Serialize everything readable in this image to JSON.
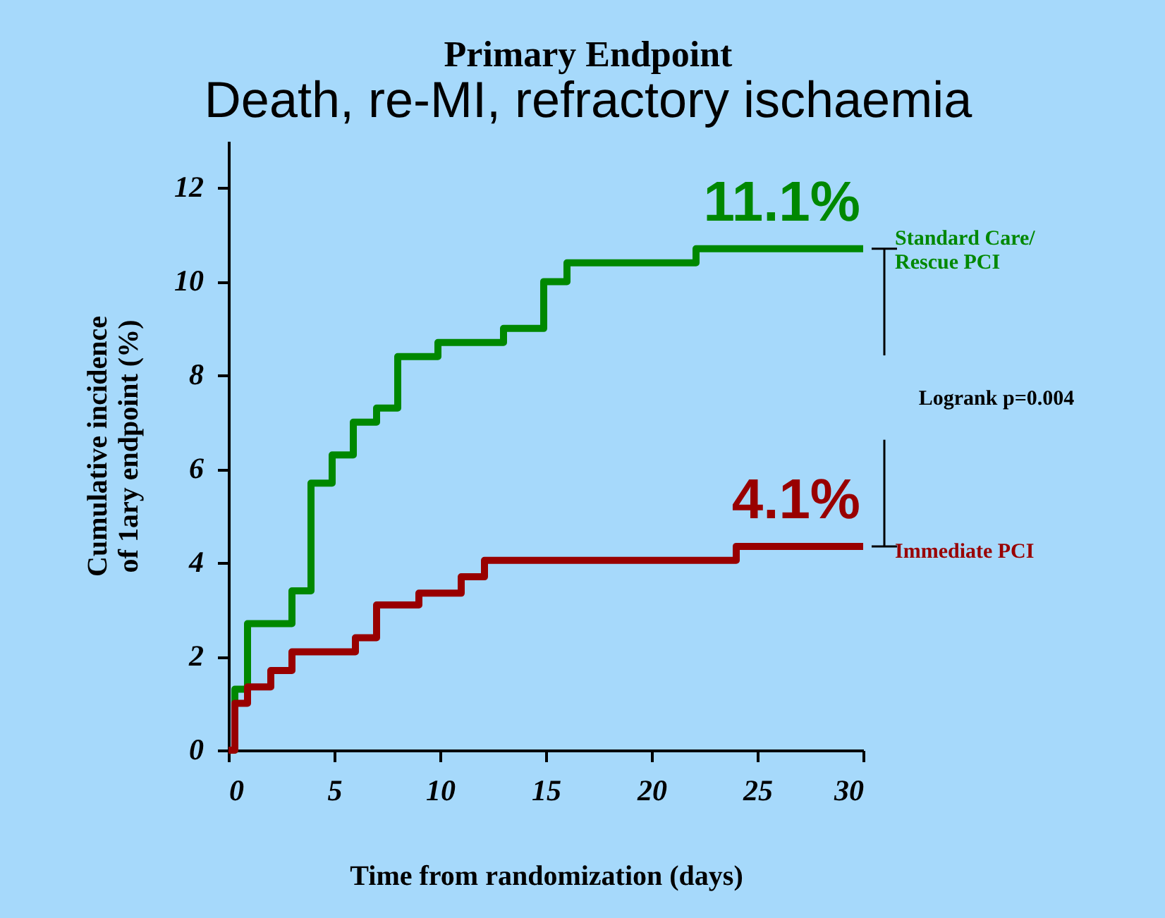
{
  "chart_data": {
    "type": "step",
    "title": "Primary Endpoint",
    "subtitle": "Death, re-MI, refractory ischaemia",
    "xlabel": "Time from randomization (days)",
    "ylabel": "Cumulative incidence\nof 1ary endpoint (%)",
    "series": [
      {
        "name": "Standard Care/\nRescue PCI",
        "color": "#008800",
        "x": [
          0,
          0.3,
          0.9,
          3,
          3.9,
          4.9,
          5.9,
          7,
          8,
          9.9,
          13,
          14.9,
          16,
          22.1,
          30
        ],
        "values": [
          0,
          1.3,
          2.7,
          3.4,
          5.7,
          6.3,
          7.0,
          7.3,
          8.4,
          8.7,
          9.0,
          10.0,
          10.4,
          10.7,
          10.7
        ]
      },
      {
        "name": "Immediate PCI",
        "color": "#990000",
        "x": [
          0,
          0.3,
          0.9,
          2,
          3,
          6,
          7,
          9,
          11,
          12.1,
          24,
          30
        ],
        "values": [
          0,
          1.0,
          1.35,
          1.7,
          2.1,
          2.4,
          3.1,
          3.35,
          3.7,
          4.05,
          4.35,
          4.35
        ]
      }
    ],
    "annotations": [
      {
        "text": "11.1%",
        "x": 30,
        "y": 10.7
      },
      {
        "text": "4.1%",
        "x": 30,
        "y": 4.35
      },
      "Logrank p=0.004"
    ],
    "xlim": [
      0,
      30
    ],
    "xticks": [
      0,
      5,
      10,
      15,
      20,
      25,
      30
    ],
    "ylim": [
      0,
      13
    ],
    "yticks": [
      0,
      2,
      4,
      6,
      8,
      10,
      12
    ],
    "grid": false,
    "marker": "none",
    "line_style": "solid"
  }
}
